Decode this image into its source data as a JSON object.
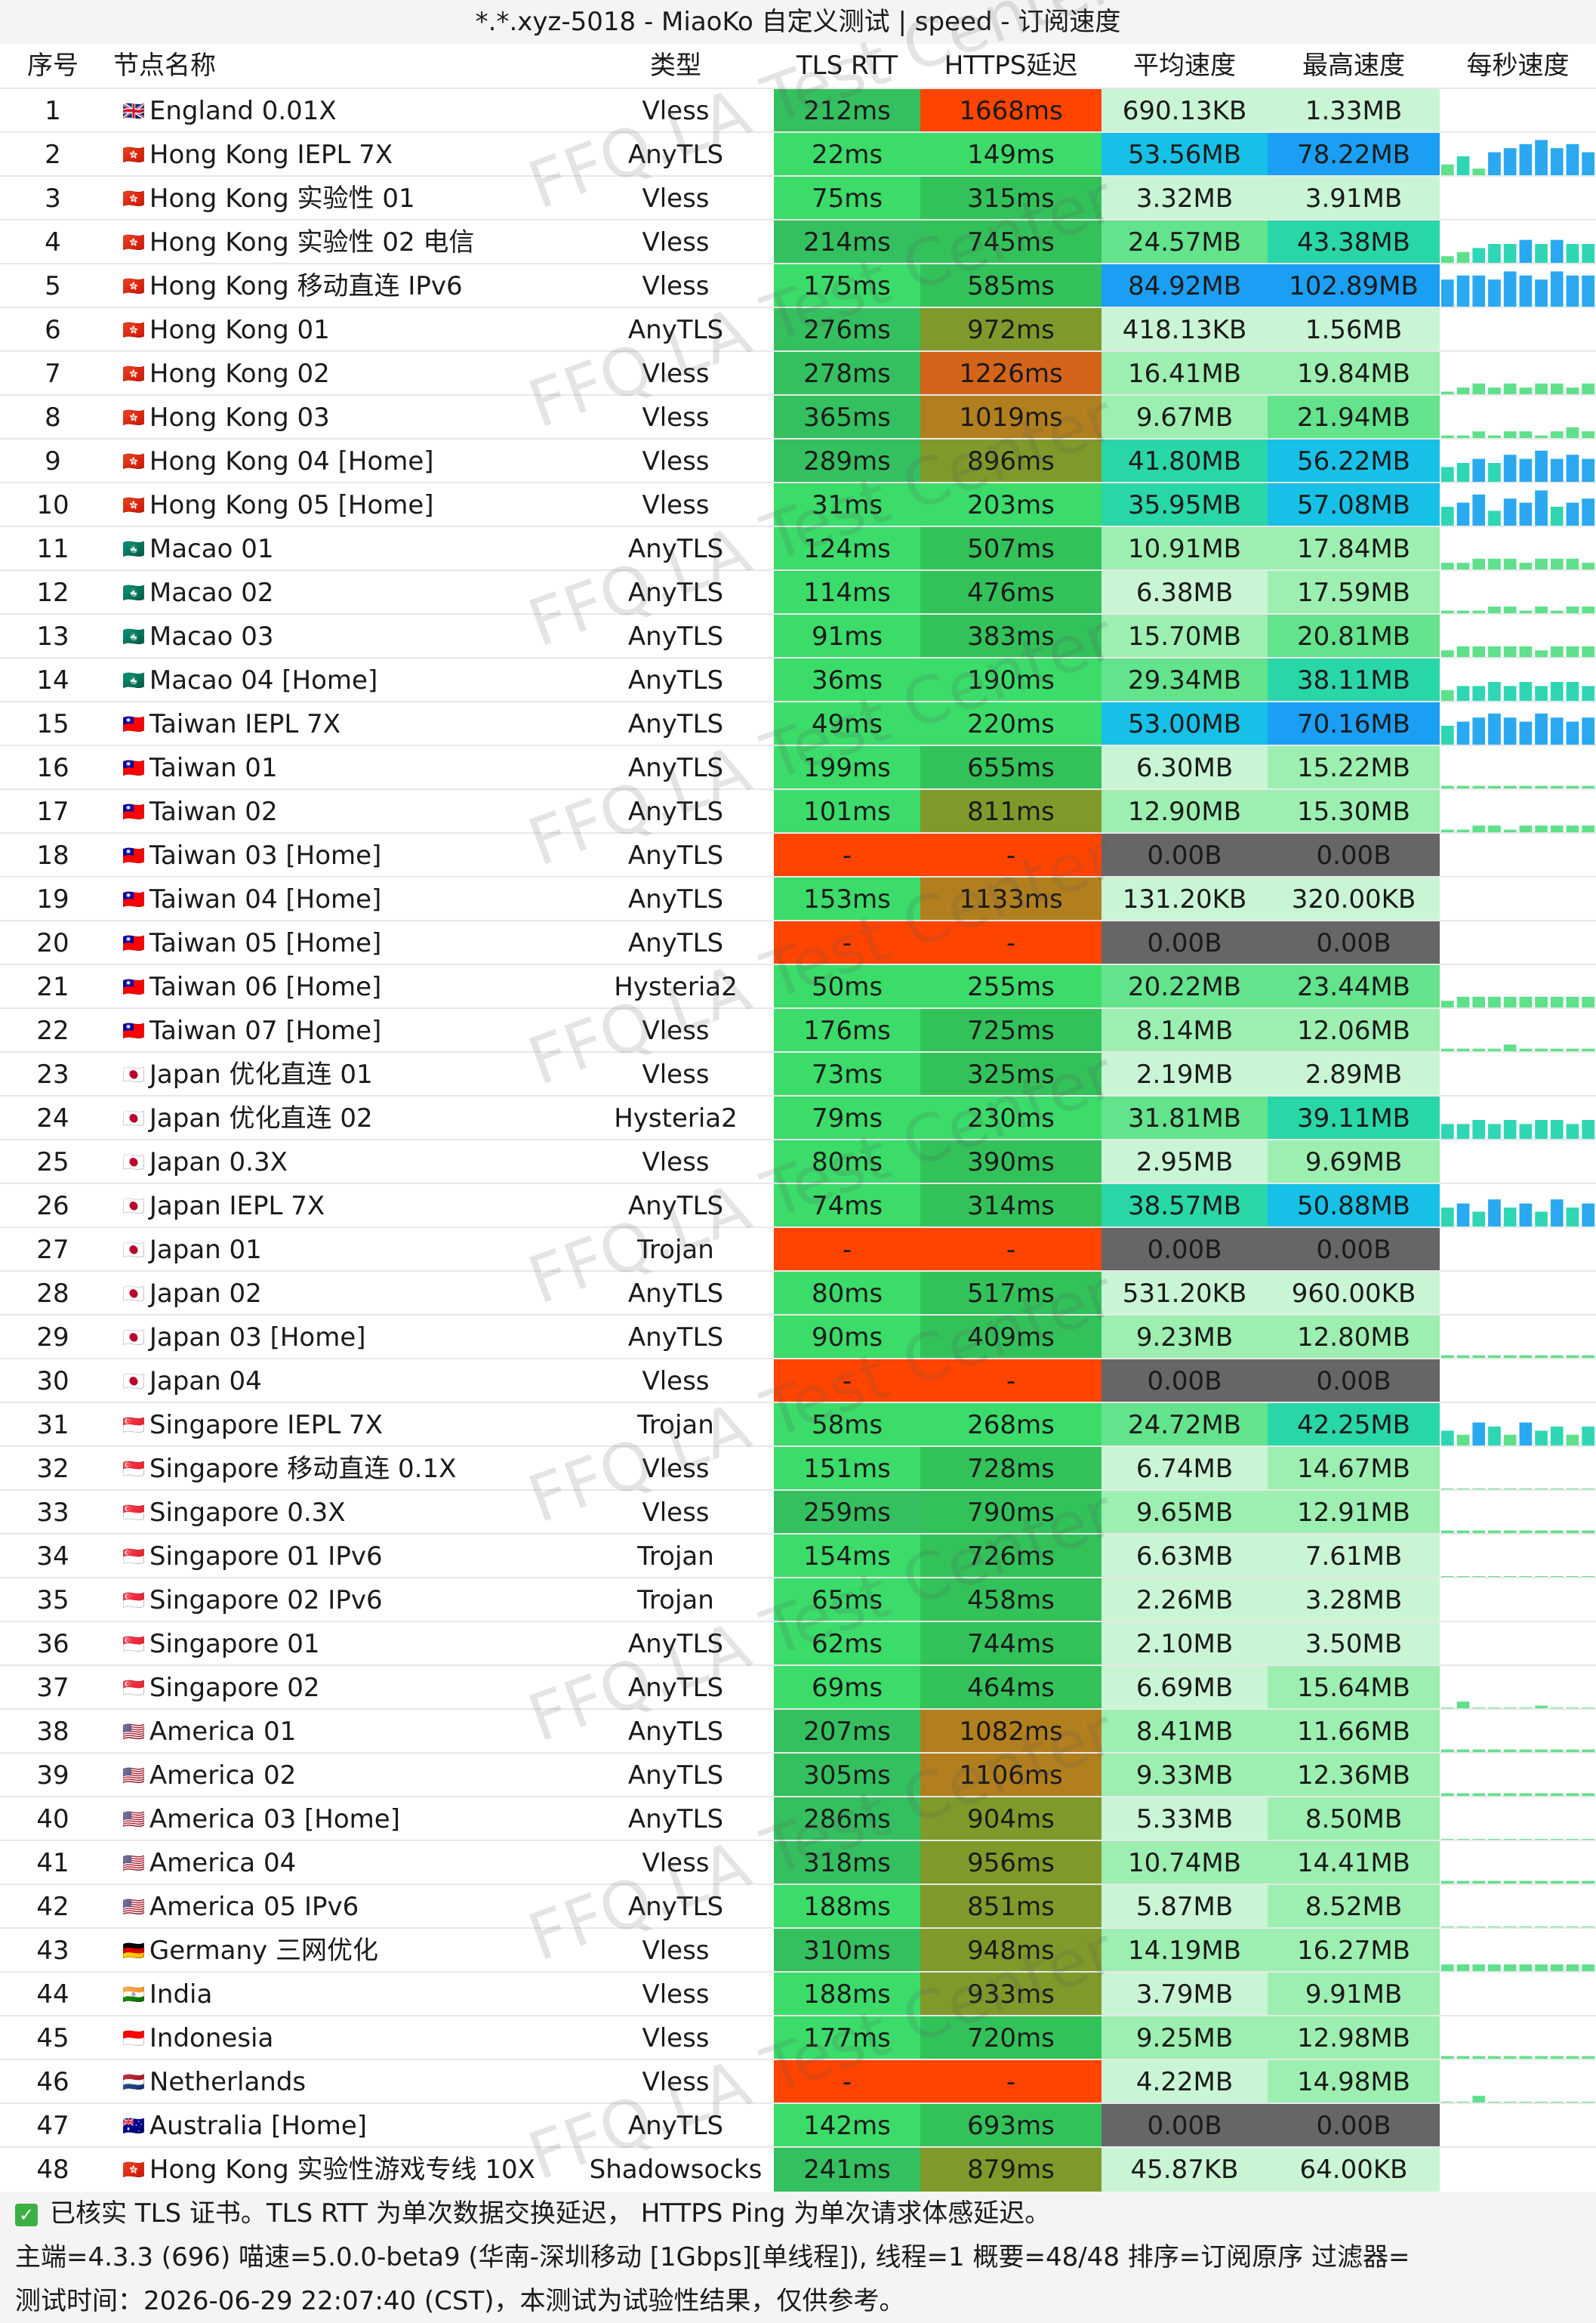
{
  "title": "*.*.xyz-5018 - MiaoKo 自定义测试 | speed - 订阅速度",
  "headers": {
    "no": "序号",
    "name": "节点名称",
    "type": "类型",
    "tls": "TLS RTT",
    "https": "HTTPS延迟",
    "avg": "平均速度",
    "max": "最高速度",
    "spark": "每秒速度"
  },
  "watermark": "FFQ.LA Test Center",
  "rows": [
    {
      "no": "1",
      "flag": "🇬🇧",
      "name": "England 0.01X",
      "type": "Vless",
      "tls": "212ms",
      "https": "1668ms",
      "avg": "690.13KB",
      "max": "1.33MB",
      "spark": []
    },
    {
      "no": "2",
      "flag": "🇭🇰",
      "name": "Hong Kong IEPL 7X",
      "type": "AnyTLS",
      "tls": "22ms",
      "https": "149ms",
      "avg": "53.56MB",
      "max": "78.22MB",
      "spark": [
        0.3,
        0.5,
        0.2,
        0.6,
        0.7,
        0.8,
        0.9,
        0.7,
        0.8,
        0.6
      ]
    },
    {
      "no": "3",
      "flag": "🇭🇰",
      "name": "Hong Kong 实验性 01",
      "type": "Vless",
      "tls": "75ms",
      "https": "315ms",
      "avg": "3.32MB",
      "max": "3.91MB",
      "spark": []
    },
    {
      "no": "4",
      "flag": "🇭🇰",
      "name": "Hong Kong 实验性 02 电信",
      "type": "Vless",
      "tls": "214ms",
      "https": "745ms",
      "avg": "24.57MB",
      "max": "43.38MB",
      "spark": [
        0.2,
        0.3,
        0.4,
        0.5,
        0.5,
        0.6,
        0.5,
        0.6,
        0.5,
        0.5
      ]
    },
    {
      "no": "5",
      "flag": "🇭🇰",
      "name": "Hong Kong 移动直连 IPv6",
      "type": "Vless",
      "tls": "175ms",
      "https": "585ms",
      "avg": "84.92MB",
      "max": "102.89MB",
      "spark": [
        0.7,
        0.8,
        0.8,
        0.7,
        0.9,
        0.8,
        0.7,
        0.9,
        0.8,
        0.8
      ]
    },
    {
      "no": "6",
      "flag": "🇭🇰",
      "name": "Hong Kong 01",
      "type": "AnyTLS",
      "tls": "276ms",
      "https": "972ms",
      "avg": "418.13KB",
      "max": "1.56MB",
      "spark": []
    },
    {
      "no": "7",
      "flag": "🇭🇰",
      "name": "Hong Kong 02",
      "type": "Vless",
      "tls": "278ms",
      "https": "1226ms",
      "avg": "16.41MB",
      "max": "19.84MB",
      "spark": [
        0.1,
        0.2,
        0.3,
        0.2,
        0.3,
        0.2,
        0.3,
        0.3,
        0.2,
        0.3
      ]
    },
    {
      "no": "8",
      "flag": "🇭🇰",
      "name": "Hong Kong 03",
      "type": "Vless",
      "tls": "365ms",
      "https": "1019ms",
      "avg": "9.67MB",
      "max": "21.94MB",
      "spark": [
        0.1,
        0.1,
        0.2,
        0.1,
        0.2,
        0.2,
        0.1,
        0.2,
        0.3,
        0.2
      ]
    },
    {
      "no": "9",
      "flag": "🇭🇰",
      "name": "Hong Kong 04 [Home]",
      "type": "Vless",
      "tls": "289ms",
      "https": "896ms",
      "avg": "41.80MB",
      "max": "56.22MB",
      "spark": [
        0.4,
        0.5,
        0.6,
        0.5,
        0.7,
        0.6,
        0.8,
        0.6,
        0.7,
        0.6
      ]
    },
    {
      "no": "10",
      "flag": "🇭🇰",
      "name": "Hong Kong 05 [Home]",
      "type": "Vless",
      "tls": "31ms",
      "https": "203ms",
      "avg": "35.95MB",
      "max": "57.08MB",
      "spark": [
        0.5,
        0.6,
        0.8,
        0.4,
        0.7,
        0.6,
        0.9,
        0.5,
        0.6,
        0.7
      ]
    },
    {
      "no": "11",
      "flag": "🇲🇴",
      "name": "Macao 01",
      "type": "AnyTLS",
      "tls": "124ms",
      "https": "507ms",
      "avg": "10.91MB",
      "max": "17.84MB",
      "spark": [
        0.2,
        0.2,
        0.3,
        0.3,
        0.3,
        0.2,
        0.3,
        0.3,
        0.3,
        0.2
      ]
    },
    {
      "no": "12",
      "flag": "🇲🇴",
      "name": "Macao 02",
      "type": "AnyTLS",
      "tls": "114ms",
      "https": "476ms",
      "avg": "6.38MB",
      "max": "17.59MB",
      "spark": [
        0.1,
        0.1,
        0.1,
        0.2,
        0.2,
        0.1,
        0.2,
        0.1,
        0.2,
        0.2
      ]
    },
    {
      "no": "13",
      "flag": "🇲🇴",
      "name": "Macao 03",
      "type": "AnyTLS",
      "tls": "91ms",
      "https": "383ms",
      "avg": "15.70MB",
      "max": "20.81MB",
      "spark": [
        0.2,
        0.3,
        0.3,
        0.3,
        0.3,
        0.3,
        0.2,
        0.3,
        0.3,
        0.3
      ]
    },
    {
      "no": "14",
      "flag": "🇲🇴",
      "name": "Macao 04 [Home]",
      "type": "AnyTLS",
      "tls": "36ms",
      "https": "190ms",
      "avg": "29.34MB",
      "max": "38.11MB",
      "spark": [
        0.3,
        0.4,
        0.4,
        0.5,
        0.4,
        0.5,
        0.4,
        0.5,
        0.5,
        0.4
      ]
    },
    {
      "no": "15",
      "flag": "🇹🇼",
      "name": "Taiwan IEPL 7X",
      "type": "AnyTLS",
      "tls": "49ms",
      "https": "220ms",
      "avg": "53.00MB",
      "max": "70.16MB",
      "spark": [
        0.5,
        0.6,
        0.7,
        0.8,
        0.7,
        0.6,
        0.8,
        0.7,
        0.6,
        0.7
      ]
    },
    {
      "no": "16",
      "flag": "🇹🇼",
      "name": "Taiwan 01",
      "type": "AnyTLS",
      "tls": "199ms",
      "https": "655ms",
      "avg": "6.30MB",
      "max": "15.22MB",
      "spark": [
        0.1,
        0.1,
        0.1,
        0.1,
        0.1,
        0.1,
        0.1,
        0.1,
        0.1,
        0.1
      ]
    },
    {
      "no": "17",
      "flag": "🇹🇼",
      "name": "Taiwan 02",
      "type": "AnyTLS",
      "tls": "101ms",
      "https": "811ms",
      "avg": "12.90MB",
      "max": "15.30MB",
      "spark": [
        0.1,
        0.1,
        0.2,
        0.2,
        0.1,
        0.2,
        0.2,
        0.2,
        0.2,
        0.2
      ]
    },
    {
      "no": "18",
      "flag": "🇹🇼",
      "name": "Taiwan 03 [Home]",
      "type": "AnyTLS",
      "tls": "-",
      "https": "-",
      "avg": "0.00B",
      "max": "0.00B",
      "spark": []
    },
    {
      "no": "19",
      "flag": "🇹🇼",
      "name": "Taiwan 04 [Home]",
      "type": "AnyTLS",
      "tls": "153ms",
      "https": "1133ms",
      "avg": "131.20KB",
      "max": "320.00KB",
      "spark": []
    },
    {
      "no": "20",
      "flag": "🇹🇼",
      "name": "Taiwan 05 [Home]",
      "type": "AnyTLS",
      "tls": "-",
      "https": "-",
      "avg": "0.00B",
      "max": "0.00B",
      "spark": []
    },
    {
      "no": "21",
      "flag": "🇹🇼",
      "name": "Taiwan 06 [Home]",
      "type": "Hysteria2",
      "tls": "50ms",
      "https": "255ms",
      "avg": "20.22MB",
      "max": "23.44MB",
      "spark": [
        0.2,
        0.3,
        0.3,
        0.3,
        0.3,
        0.3,
        0.3,
        0.3,
        0.3,
        0.3
      ]
    },
    {
      "no": "22",
      "flag": "🇹🇼",
      "name": "Taiwan 07 [Home]",
      "type": "Vless",
      "tls": "176ms",
      "https": "725ms",
      "avg": "8.14MB",
      "max": "12.06MB",
      "spark": [
        0.1,
        0.1,
        0.1,
        0.1,
        0.2,
        0.1,
        0.1,
        0.1,
        0.1,
        0.1
      ]
    },
    {
      "no": "23",
      "flag": "🇯🇵",
      "name": "Japan 优化直连 01",
      "type": "Vless",
      "tls": "73ms",
      "https": "325ms",
      "avg": "2.19MB",
      "max": "2.89MB",
      "spark": []
    },
    {
      "no": "24",
      "flag": "🇯🇵",
      "name": "Japan 优化直连 02",
      "type": "Hysteria2",
      "tls": "79ms",
      "https": "230ms",
      "avg": "31.81MB",
      "max": "39.11MB",
      "spark": [
        0.4,
        0.4,
        0.5,
        0.4,
        0.5,
        0.4,
        0.5,
        0.5,
        0.4,
        0.5
      ]
    },
    {
      "no": "25",
      "flag": "🇯🇵",
      "name": "Japan 0.3X",
      "type": "Vless",
      "tls": "80ms",
      "https": "390ms",
      "avg": "2.95MB",
      "max": "9.69MB",
      "spark": []
    },
    {
      "no": "26",
      "flag": "🇯🇵",
      "name": "Japan IEPL 7X",
      "type": "AnyTLS",
      "tls": "74ms",
      "https": "314ms",
      "avg": "38.57MB",
      "max": "50.88MB",
      "spark": [
        0.5,
        0.6,
        0.4,
        0.7,
        0.5,
        0.6,
        0.4,
        0.7,
        0.5,
        0.6
      ]
    },
    {
      "no": "27",
      "flag": "🇯🇵",
      "name": "Japan 01",
      "type": "Trojan",
      "tls": "-",
      "https": "-",
      "avg": "0.00B",
      "max": "0.00B",
      "spark": []
    },
    {
      "no": "28",
      "flag": "🇯🇵",
      "name": "Japan 02",
      "type": "AnyTLS",
      "tls": "80ms",
      "https": "517ms",
      "avg": "531.20KB",
      "max": "960.00KB",
      "spark": []
    },
    {
      "no": "29",
      "flag": "🇯🇵",
      "name": "Japan 03 [Home]",
      "type": "AnyTLS",
      "tls": "90ms",
      "https": "409ms",
      "avg": "9.23MB",
      "max": "12.80MB",
      "spark": [
        0.1,
        0.1,
        0.1,
        0.1,
        0.1,
        0.1,
        0.1,
        0.1,
        0.1,
        0.1
      ]
    },
    {
      "no": "30",
      "flag": "🇯🇵",
      "name": "Japan 04",
      "type": "Vless",
      "tls": "-",
      "https": "-",
      "avg": "0.00B",
      "max": "0.00B",
      "spark": []
    },
    {
      "no": "31",
      "flag": "🇸🇬",
      "name": "Singapore IEPL 7X",
      "type": "Trojan",
      "tls": "58ms",
      "https": "268ms",
      "avg": "24.72MB",
      "max": "42.25MB",
      "spark": [
        0.4,
        0.3,
        0.6,
        0.5,
        0.3,
        0.6,
        0.4,
        0.5,
        0.3,
        0.5
      ]
    },
    {
      "no": "32",
      "flag": "🇸🇬",
      "name": "Singapore 移动直连 0.1X",
      "type": "Vless",
      "tls": "151ms",
      "https": "728ms",
      "avg": "6.74MB",
      "max": "14.67MB",
      "spark": [
        0.05,
        0.05,
        0.05,
        0.05,
        0.05,
        0.05,
        0.05,
        0.05,
        0.05,
        0.05
      ]
    },
    {
      "no": "33",
      "flag": "🇸🇬",
      "name": "Singapore 0.3X",
      "type": "Vless",
      "tls": "259ms",
      "https": "790ms",
      "avg": "9.65MB",
      "max": "12.91MB",
      "spark": [
        0.1,
        0.1,
        0.1,
        0.1,
        0.1,
        0.1,
        0.1,
        0.1,
        0.1,
        0.1
      ]
    },
    {
      "no": "34",
      "flag": "🇸🇬",
      "name": "Singapore 01 IPv6",
      "type": "Trojan",
      "tls": "154ms",
      "https": "726ms",
      "avg": "6.63MB",
      "max": "7.61MB",
      "spark": [
        0.05,
        0.05,
        0.05,
        0.05,
        0.05,
        0.05,
        0.05,
        0.05,
        0.05,
        0.05
      ]
    },
    {
      "no": "35",
      "flag": "🇸🇬",
      "name": "Singapore 02 IPv6",
      "type": "Trojan",
      "tls": "65ms",
      "https": "458ms",
      "avg": "2.26MB",
      "max": "3.28MB",
      "spark": []
    },
    {
      "no": "36",
      "flag": "🇸🇬",
      "name": "Singapore 01",
      "type": "AnyTLS",
      "tls": "62ms",
      "https": "744ms",
      "avg": "2.10MB",
      "max": "3.50MB",
      "spark": []
    },
    {
      "no": "37",
      "flag": "🇸🇬",
      "name": "Singapore 02",
      "type": "AnyTLS",
      "tls": "69ms",
      "https": "464ms",
      "avg": "6.69MB",
      "max": "15.64MB",
      "spark": [
        0.05,
        0.2,
        0.05,
        0.05,
        0.05,
        0.05,
        0.1,
        0.05,
        0.05,
        0.05
      ]
    },
    {
      "no": "38",
      "flag": "🇺🇸",
      "name": "America 01",
      "type": "AnyTLS",
      "tls": "207ms",
      "https": "1082ms",
      "avg": "8.41MB",
      "max": "11.66MB",
      "spark": [
        0.1,
        0.1,
        0.1,
        0.1,
        0.1,
        0.1,
        0.1,
        0.1,
        0.1,
        0.1
      ]
    },
    {
      "no": "39",
      "flag": "🇺🇸",
      "name": "America 02",
      "type": "AnyTLS",
      "tls": "305ms",
      "https": "1106ms",
      "avg": "9.33MB",
      "max": "12.36MB",
      "spark": [
        0.1,
        0.1,
        0.1,
        0.1,
        0.1,
        0.1,
        0.1,
        0.1,
        0.1,
        0.1
      ]
    },
    {
      "no": "40",
      "flag": "🇺🇸",
      "name": "America 03 [Home]",
      "type": "AnyTLS",
      "tls": "286ms",
      "https": "904ms",
      "avg": "5.33MB",
      "max": "8.50MB",
      "spark": [
        0.05,
        0.05,
        0.05,
        0.05,
        0.05,
        0.05,
        0.05,
        0.05,
        0.05,
        0.05
      ]
    },
    {
      "no": "41",
      "flag": "🇺🇸",
      "name": "America 04",
      "type": "Vless",
      "tls": "318ms",
      "https": "956ms",
      "avg": "10.74MB",
      "max": "14.41MB",
      "spark": [
        0.1,
        0.1,
        0.1,
        0.1,
        0.1,
        0.1,
        0.1,
        0.1,
        0.1,
        0.1
      ]
    },
    {
      "no": "42",
      "flag": "🇺🇸",
      "name": "America 05 IPv6",
      "type": "AnyTLS",
      "tls": "188ms",
      "https": "851ms",
      "avg": "5.87MB",
      "max": "8.52MB",
      "spark": [
        0.05,
        0.05,
        0.05,
        0.05,
        0.05,
        0.05,
        0.05,
        0.05,
        0.05,
        0.05
      ]
    },
    {
      "no": "43",
      "flag": "🇩🇪",
      "name": "Germany 三网优化",
      "type": "Vless",
      "tls": "310ms",
      "https": "948ms",
      "avg": "14.19MB",
      "max": "16.27MB",
      "spark": [
        0.2,
        0.2,
        0.2,
        0.2,
        0.2,
        0.2,
        0.2,
        0.2,
        0.2,
        0.2
      ]
    },
    {
      "no": "44",
      "flag": "🇮🇳",
      "name": "India",
      "type": "Vless",
      "tls": "188ms",
      "https": "933ms",
      "avg": "3.79MB",
      "max": "9.91MB",
      "spark": []
    },
    {
      "no": "45",
      "flag": "🇮🇩",
      "name": "Indonesia",
      "type": "Vless",
      "tls": "177ms",
      "https": "720ms",
      "avg": "9.25MB",
      "max": "12.98MB",
      "spark": [
        0.1,
        0.1,
        0.1,
        0.1,
        0.1,
        0.1,
        0.1,
        0.1,
        0.1,
        0.1
      ]
    },
    {
      "no": "46",
      "flag": "🇳🇱",
      "name": "Netherlands",
      "type": "Vless",
      "tls": "-",
      "https": "-",
      "avg": "4.22MB",
      "max": "14.98MB",
      "spark": [
        0.05,
        0.05,
        0.2,
        0.05,
        0.05,
        0.05,
        0.05,
        0.05,
        0.05,
        0.05
      ]
    },
    {
      "no": "47",
      "flag": "🇦🇺",
      "name": "Australia [Home]",
      "type": "AnyTLS",
      "tls": "142ms",
      "https": "693ms",
      "avg": "0.00B",
      "max": "0.00B",
      "spark": []
    },
    {
      "no": "48",
      "flag": "🇭🇰",
      "name": "Hong Kong 实验性游戏专线 10X",
      "type": "Shadowsocks",
      "tls": "241ms",
      "https": "879ms",
      "avg": "45.87KB",
      "max": "64.00KB",
      "spark": []
    }
  ],
  "footer": {
    "line1": "已核实 TLS 证书。TLS RTT 为单次数据交换延迟， HTTPS Ping 为单次请求体感延迟。",
    "line2": "主端=4.3.3 (696) 喵速=5.0.0-beta9 (华南-深圳移动 [1Gbps][单线程]), 线程=1 概要=48/48 排序=订阅原序 过滤器=",
    "line3": "测试时间：2026-06-29 22:07:40 (CST)，本测试为试验性结果，仅供参考。"
  }
}
